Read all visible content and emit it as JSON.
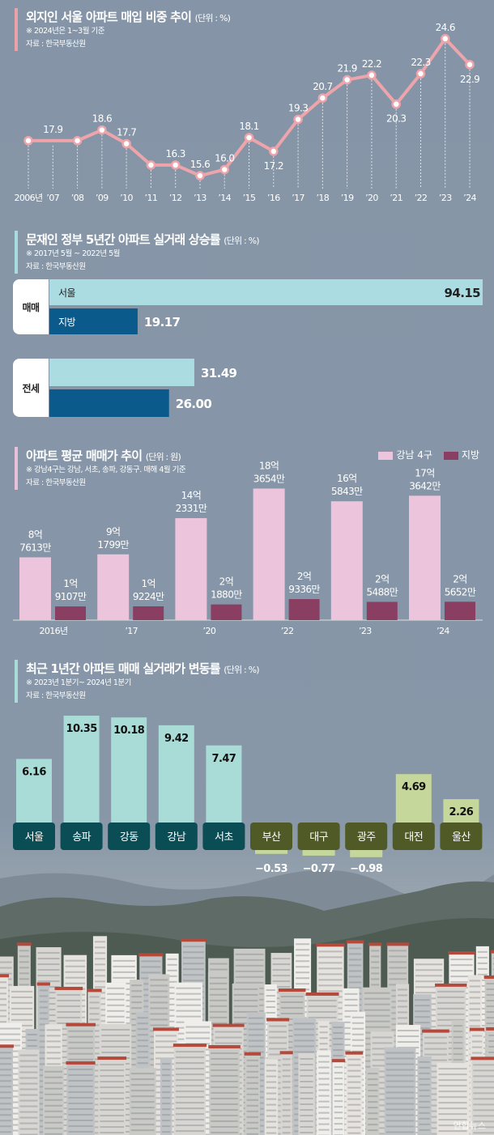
{
  "colors": {
    "background": "#8595a7",
    "line": "#eda5ab",
    "seoul": "#abdce2",
    "region": "#0b5a8c",
    "gangnam": "#ecc4dc",
    "region_price": "#8a3f62",
    "seoul_change": "#a9dcd6",
    "seoul_label_box": "#0b4d55",
    "region_change": "#c6d79c",
    "region_label_box": "#4f5a27"
  },
  "chart_data": [
    {
      "type": "line",
      "title": "외지인 서울 아파트 매입 비중 추이",
      "unit": "(단위 : %)",
      "note": "※ 2024년은 1~3월 기준",
      "source": "자료 : 한국부동산원",
      "x": [
        "2006년",
        "’07",
        "’08",
        "’09",
        "’10",
        "’11",
        "’12",
        "’13",
        "’14",
        "’15",
        "’16",
        "’17",
        "’18",
        "’19",
        "’20",
        "’21",
        "’22",
        "’23",
        "’24"
      ],
      "values": [
        17.9,
        17.9,
        17.9,
        18.6,
        17.7,
        16.3,
        16.3,
        15.6,
        16.0,
        18.1,
        17.2,
        19.3,
        20.7,
        21.9,
        22.2,
        20.3,
        22.3,
        24.6,
        22.9
      ],
      "data_labels": [
        "",
        "17.9",
        "",
        "18.6",
        "17.7",
        "",
        "16.3",
        "15.6",
        "16.0",
        "18.1",
        "17.2",
        "19.3",
        "20.7",
        "21.9",
        "22.2",
        "20.3",
        "22.3",
        "24.6",
        "22.9"
      ],
      "grid": false
    },
    {
      "type": "bar",
      "orientation": "horizontal",
      "title": "문재인 정부 5년간 아파트 실거래 상승률",
      "unit": "(단위 : %)",
      "note": "※ 2017년 5월 ~ 2022년 5월",
      "source": "자료 : 한국부동산원",
      "categories": [
        "매매",
        "전세"
      ],
      "series": [
        {
          "name": "서울",
          "values": [
            94.15,
            31.49
          ],
          "labels": [
            "94.15",
            "31.49"
          ]
        },
        {
          "name": "지방",
          "values": [
            19.17,
            26.0
          ],
          "labels": [
            "19.17",
            "26.00"
          ]
        }
      ]
    },
    {
      "type": "bar",
      "title": "아파트 평균 매매가 추이",
      "unit": "(단위 : 원)",
      "note": "※ 강남4구는 강남, 서초, 송파, 강동구. 매해 4월 기준",
      "source": "자료 : 한국부동산원",
      "legend_position": "top-right",
      "categories": [
        "2016년",
        "’17",
        "’20",
        "’22",
        "’23",
        "’24"
      ],
      "series": [
        {
          "name": "강남 4구",
          "values_eok": [
            8.7613,
            9.1799,
            14.2331,
            18.3654,
            16.5843,
            17.3642
          ],
          "labels": [
            [
              "8억",
              "7613만"
            ],
            [
              "9억",
              "1799만"
            ],
            [
              "14억",
              "2331만"
            ],
            [
              "18억",
              "3654만"
            ],
            [
              "16억",
              "5843만"
            ],
            [
              "17억",
              "3642만"
            ]
          ]
        },
        {
          "name": "지방",
          "values_eok": [
            1.9107,
            1.9224,
            2.188,
            2.9336,
            2.5488,
            2.5652
          ],
          "labels": [
            [
              "1억",
              "9107만"
            ],
            [
              "1억",
              "9224만"
            ],
            [
              "2억",
              "1880만"
            ],
            [
              "2억",
              "9336만"
            ],
            [
              "2억",
              "5488만"
            ],
            [
              "2억",
              "5652만"
            ]
          ]
        }
      ]
    },
    {
      "type": "bar",
      "title": "최근 1년간 아파트 매매 실거래가 변동률",
      "unit": "(단위 : %)",
      "note": "※ 2023년 1분기~ 2024년 1분기",
      "source": "자료 : 한국부동산원",
      "categories": [
        "서울",
        "송파",
        "강동",
        "강남",
        "서초",
        "부산",
        "대구",
        "광주",
        "대전",
        "울산"
      ],
      "values": [
        6.16,
        10.35,
        10.18,
        9.42,
        7.47,
        -0.53,
        -0.77,
        -0.98,
        4.69,
        2.26
      ],
      "labels": [
        "6.16",
        "10.35",
        "10.18",
        "9.42",
        "7.47",
        "−0.53",
        "−0.77",
        "−0.98",
        "4.69",
        "2.26"
      ],
      "group": [
        "seoul",
        "seoul",
        "seoul",
        "seoul",
        "seoul",
        "region",
        "region",
        "region",
        "region",
        "region"
      ]
    }
  ],
  "credit": "연합뉴스"
}
